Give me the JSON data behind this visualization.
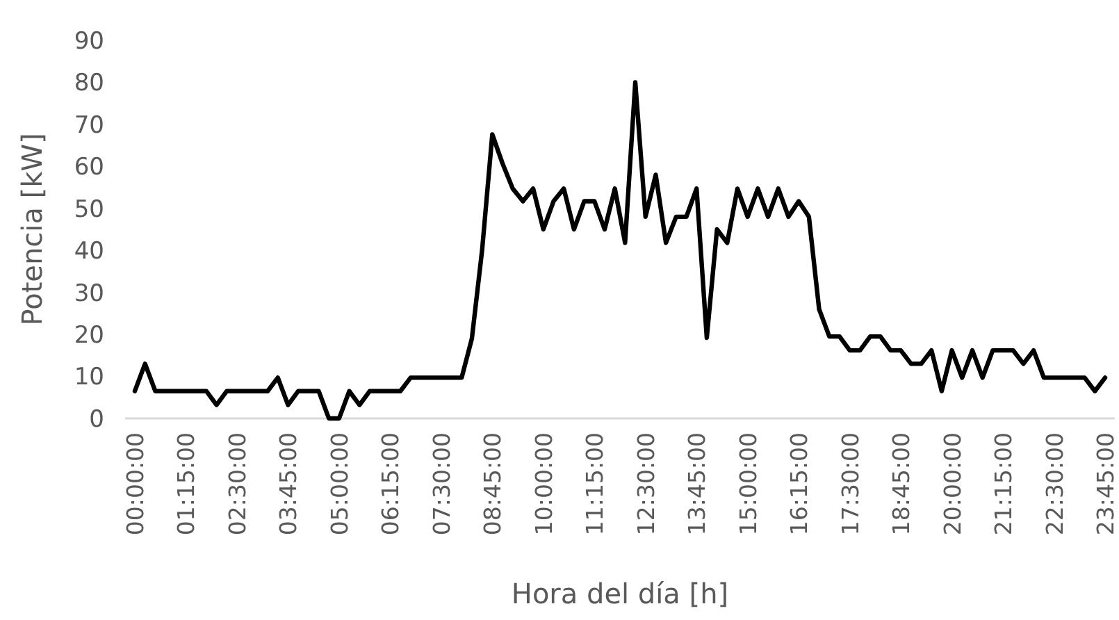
{
  "chart_data": {
    "type": "line",
    "xlabel": "Hora del día [h]",
    "ylabel": "Potencia [kW]",
    "categories": [
      "00:00:00",
      null,
      null,
      null,
      null,
      "01:15:00",
      null,
      null,
      null,
      null,
      "02:30:00",
      null,
      null,
      null,
      null,
      "03:45:00",
      null,
      null,
      null,
      null,
      "05:00:00",
      null,
      null,
      null,
      null,
      "06:15:00",
      null,
      null,
      null,
      null,
      "07:30:00",
      null,
      null,
      null,
      null,
      "08:45:00",
      null,
      null,
      null,
      null,
      "10:00:00",
      null,
      null,
      null,
      null,
      "11:15:00",
      null,
      null,
      null,
      null,
      "12:30:00",
      null,
      null,
      null,
      null,
      "13:45:00",
      null,
      null,
      null,
      null,
      "15:00:00",
      null,
      null,
      null,
      null,
      "16:15:00",
      null,
      null,
      null,
      null,
      "17:30:00",
      null,
      null,
      null,
      null,
      "18:45:00",
      null,
      null,
      null,
      null,
      "20:00:00",
      null,
      null,
      null,
      null,
      "21:15:00",
      null,
      null,
      null,
      null,
      "22:30:00",
      null,
      null,
      null,
      null,
      "23:45:00"
    ],
    "series": [
      {
        "color": "#000000",
        "values": [
          6.5,
          13,
          6.5,
          6.5,
          6.5,
          6.5,
          6.5,
          6.5,
          3.2,
          6.5,
          6.5,
          6.5,
          6.5,
          6.5,
          9.7,
          3.2,
          6.5,
          6.5,
          6.5,
          0,
          0,
          6.5,
          3.2,
          6.5,
          6.5,
          6.5,
          6.5,
          9.7,
          9.7,
          9.7,
          9.7,
          9.7,
          9.7,
          19,
          40,
          67.6,
          60.7,
          54.7,
          51.7,
          54.7,
          45,
          51.7,
          54.7,
          45,
          51.7,
          51.7,
          45,
          54.7,
          41.8,
          80,
          48,
          58,
          41.8,
          48,
          48,
          54.7,
          19.2,
          45,
          41.8,
          54.7,
          48,
          54.7,
          48,
          54.7,
          48,
          51.7,
          48,
          26,
          19.5,
          19.5,
          16.2,
          16.2,
          19.5,
          19.5,
          16.2,
          16.2,
          13,
          13,
          16.2,
          6.5,
          16.2,
          9.7,
          16.2,
          9.7,
          16.2,
          16.2,
          16.2,
          13,
          16.2,
          9.7,
          9.7,
          9.7,
          9.7,
          9.7,
          6.5,
          9.7
        ]
      }
    ],
    "ylim": [
      0,
      90
    ],
    "yticks": [
      0,
      10,
      20,
      30,
      40,
      50,
      60,
      70,
      80,
      90
    ],
    "grid": false,
    "marker": "none",
    "line_style": "solid"
  }
}
